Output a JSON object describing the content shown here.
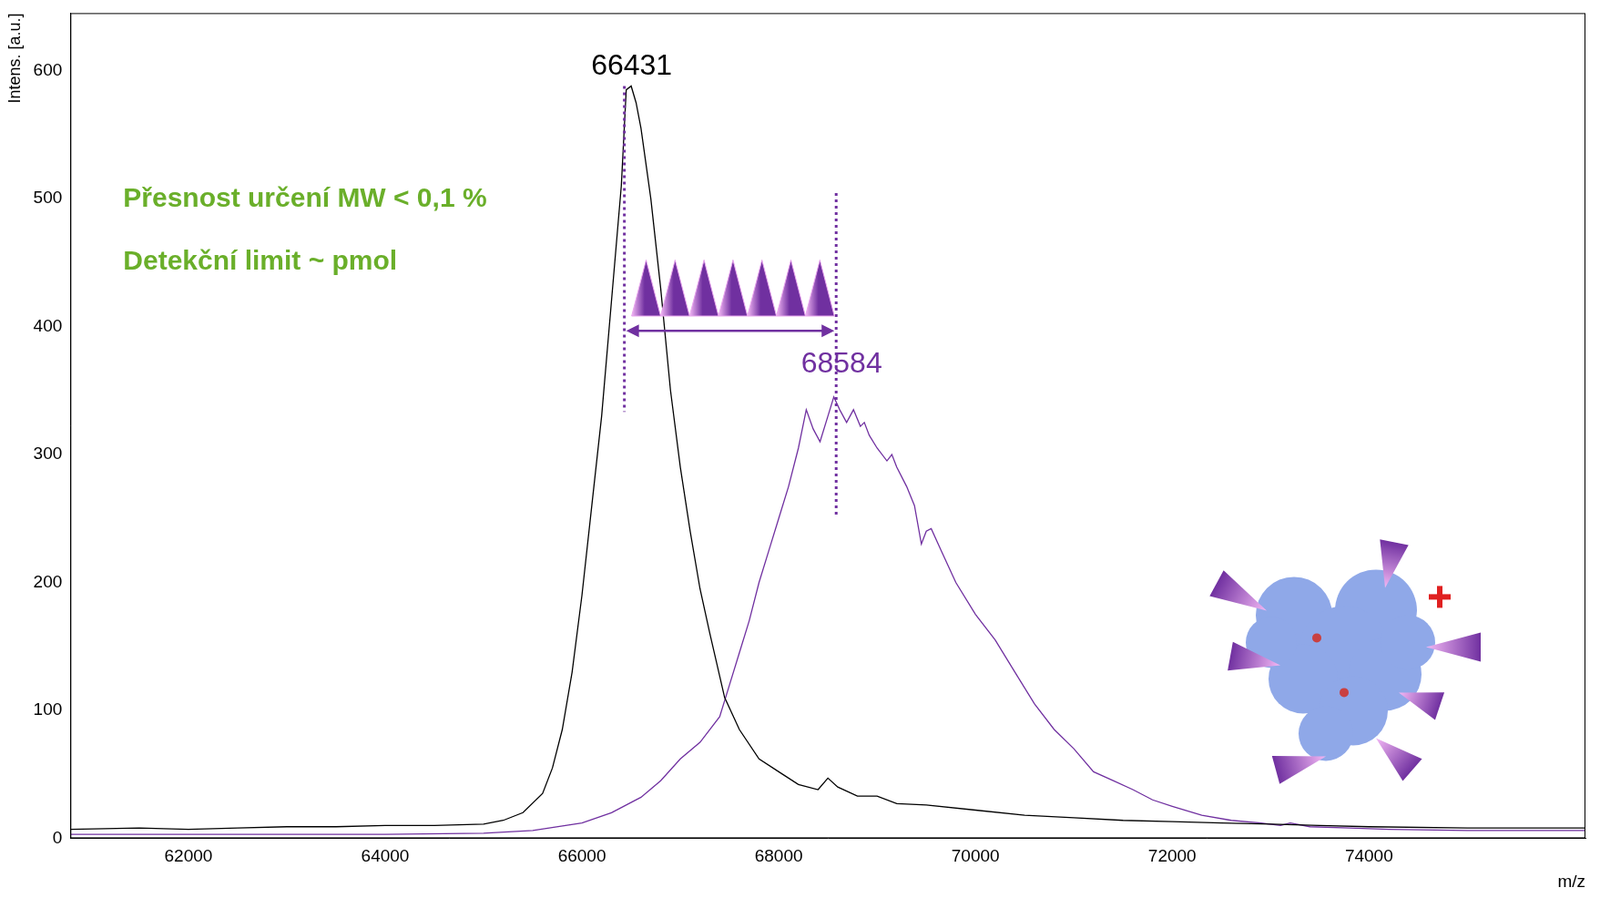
{
  "chart_data": {
    "type": "line",
    "x_label": "m/z",
    "y_label": "Intens. [a.u.]",
    "xlim": [
      60800,
      76200
    ],
    "ylim": [
      0,
      645
    ],
    "xticks": [
      62000,
      64000,
      66000,
      68000,
      70000,
      72000,
      74000
    ],
    "yticks": [
      0,
      100,
      200,
      300,
      400,
      500,
      600
    ],
    "grid": false,
    "series": [
      {
        "color": "#000000",
        "x": [
          60800,
          61500,
          62000,
          62500,
          63000,
          63500,
          64000,
          64500,
          65000,
          65200,
          65400,
          65600,
          65700,
          65800,
          65900,
          66000,
          66100,
          66200,
          66300,
          66400,
          66450,
          66500,
          66550,
          66600,
          66700,
          66800,
          66900,
          67000,
          67100,
          67200,
          67300,
          67450,
          67600,
          67800,
          68000,
          68200,
          68400,
          68500,
          68600,
          68800,
          69000,
          69200,
          69500,
          70000,
          70500,
          71000,
          71500,
          72000,
          72500,
          73000,
          73500,
          74000,
          75000,
          76200
        ],
        "values": [
          7,
          8,
          7,
          8,
          9,
          9,
          10,
          10,
          11,
          14,
          20,
          35,
          55,
          85,
          130,
          190,
          260,
          330,
          420,
          510,
          585,
          588,
          575,
          555,
          500,
          430,
          350,
          290,
          240,
          195,
          160,
          110,
          85,
          62,
          52,
          42,
          38,
          47,
          40,
          33,
          33,
          27,
          26,
          22,
          18,
          16,
          14,
          13,
          12,
          11,
          10,
          9,
          8,
          8
        ]
      },
      {
        "color": "#7030a0",
        "x": [
          60800,
          62000,
          63000,
          64000,
          65000,
          65500,
          66000,
          66300,
          66600,
          66800,
          67000,
          67200,
          67400,
          67500,
          67600,
          67700,
          67800,
          67900,
          68000,
          68100,
          68200,
          68280,
          68350,
          68420,
          68500,
          68560,
          68620,
          68690,
          68760,
          68830,
          68870,
          68920,
          69000,
          69100,
          69150,
          69200,
          69300,
          69380,
          69450,
          69500,
          69550,
          69650,
          69800,
          70000,
          70200,
          70400,
          70600,
          70800,
          71000,
          71200,
          71400,
          71600,
          71800,
          72000,
          72300,
          72600,
          72900,
          73100,
          73200,
          73400,
          73800,
          74200,
          75000,
          76200
        ],
        "values": [
          3,
          3,
          3,
          3,
          4,
          6,
          12,
          20,
          32,
          45,
          62,
          75,
          95,
          120,
          145,
          170,
          200,
          225,
          250,
          275,
          305,
          335,
          320,
          310,
          330,
          345,
          335,
          325,
          335,
          322,
          325,
          315,
          305,
          295,
          300,
          290,
          275,
          260,
          230,
          240,
          242,
          225,
          200,
          175,
          155,
          130,
          105,
          85,
          70,
          52,
          45,
          38,
          30,
          25,
          18,
          14,
          12,
          10,
          12,
          9,
          8,
          7,
          6,
          6
        ]
      }
    ],
    "peaks": [
      {
        "label": "66431",
        "x": 66431
      },
      {
        "label": "68584",
        "x": 68584
      }
    ],
    "notes": [
      "Přesnost určení MW < 0,1 %",
      "Detekční limit ~ pmol"
    ]
  }
}
